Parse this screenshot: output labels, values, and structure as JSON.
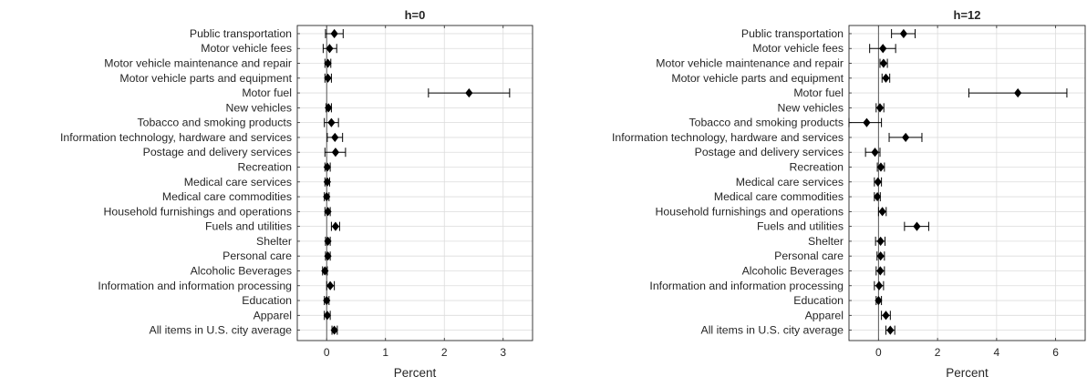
{
  "chart_data": [
    {
      "type": "scatter",
      "title": "h=0",
      "xlabel": "Percent",
      "ylabel": "",
      "xlim": [
        -0.5,
        3.5
      ],
      "xticks": [
        0,
        1,
        2,
        3
      ],
      "grid": true,
      "categories": [
        "Public transportation",
        "Motor vehicle fees",
        "Motor vehicle maintenance and repair",
        "Motor vehicle parts and equipment",
        "Motor fuel",
        "New vehicles",
        "Tobacco and smoking products",
        "Information technology, hardware and services",
        "Postage and delivery services",
        "Recreation",
        "Medical care services",
        "Medical care commodities",
        "Household furnishings and operations",
        "Fuels and utilities",
        "Shelter",
        "Personal care",
        "Alcoholic Beverages",
        "Information and information processing",
        "Education",
        "Apparel",
        "All items in U.S. city average"
      ],
      "points": [
        {
          "value": 0.13,
          "low": -0.02,
          "high": 0.28
        },
        {
          "value": 0.05,
          "low": -0.06,
          "high": 0.17
        },
        {
          "value": 0.02,
          "low": -0.03,
          "high": 0.07
        },
        {
          "value": 0.02,
          "low": -0.03,
          "high": 0.08
        },
        {
          "value": 2.42,
          "low": 1.73,
          "high": 3.11
        },
        {
          "value": 0.03,
          "low": -0.01,
          "high": 0.08
        },
        {
          "value": 0.08,
          "low": -0.04,
          "high": 0.2
        },
        {
          "value": 0.14,
          "low": 0.01,
          "high": 0.27
        },
        {
          "value": 0.15,
          "low": -0.03,
          "high": 0.32
        },
        {
          "value": 0.01,
          "low": -0.03,
          "high": 0.06
        },
        {
          "value": 0.01,
          "low": -0.03,
          "high": 0.05
        },
        {
          "value": 0.0,
          "low": -0.04,
          "high": 0.04
        },
        {
          "value": 0.02,
          "low": -0.03,
          "high": 0.06
        },
        {
          "value": 0.15,
          "low": 0.08,
          "high": 0.22
        },
        {
          "value": 0.02,
          "low": -0.02,
          "high": 0.06
        },
        {
          "value": 0.02,
          "low": -0.02,
          "high": 0.06
        },
        {
          "value": -0.03,
          "low": -0.07,
          "high": 0.01
        },
        {
          "value": 0.06,
          "low": 0.0,
          "high": 0.13
        },
        {
          "value": 0.0,
          "low": -0.04,
          "high": 0.04
        },
        {
          "value": 0.01,
          "low": -0.04,
          "high": 0.06
        },
        {
          "value": 0.13,
          "low": 0.09,
          "high": 0.18
        }
      ]
    },
    {
      "type": "scatter",
      "title": "h=12",
      "xlabel": "Percent",
      "ylabel": "",
      "xlim": [
        -1,
        7
      ],
      "xticks": [
        0,
        2,
        4,
        6
      ],
      "grid": true,
      "categories": [
        "Public transportation",
        "Motor vehicle fees",
        "Motor vehicle maintenance and repair",
        "Motor vehicle parts and equipment",
        "Motor fuel",
        "New vehicles",
        "Tobacco and smoking products",
        "Information technology, hardware and services",
        "Postage and delivery services",
        "Recreation",
        "Medical care services",
        "Medical care commodities",
        "Household furnishings and operations",
        "Fuels and utilities",
        "Shelter",
        "Personal care",
        "Alcoholic Beverages",
        "Information and information processing",
        "Education",
        "Apparel",
        "All items in U.S. city average"
      ],
      "points": [
        {
          "value": 0.85,
          "low": 0.44,
          "high": 1.24
        },
        {
          "value": 0.15,
          "low": -0.3,
          "high": 0.58
        },
        {
          "value": 0.17,
          "low": 0.05,
          "high": 0.3
        },
        {
          "value": 0.25,
          "low": 0.12,
          "high": 0.38
        },
        {
          "value": 4.72,
          "low": 3.06,
          "high": 6.38
        },
        {
          "value": 0.05,
          "low": -0.08,
          "high": 0.18
        },
        {
          "value": -0.4,
          "low": -1.0,
          "high": 0.1
        },
        {
          "value": 0.92,
          "low": 0.36,
          "high": 1.47
        },
        {
          "value": -0.12,
          "low": -0.44,
          "high": 0.05
        },
        {
          "value": 0.08,
          "low": -0.04,
          "high": 0.2
        },
        {
          "value": -0.02,
          "low": -0.14,
          "high": 0.1
        },
        {
          "value": -0.04,
          "low": -0.14,
          "high": 0.06
        },
        {
          "value": 0.13,
          "low": 0.0,
          "high": 0.26
        },
        {
          "value": 1.3,
          "low": 0.88,
          "high": 1.7
        },
        {
          "value": 0.07,
          "low": -0.1,
          "high": 0.22
        },
        {
          "value": 0.07,
          "low": -0.05,
          "high": 0.2
        },
        {
          "value": 0.06,
          "low": -0.08,
          "high": 0.2
        },
        {
          "value": 0.02,
          "low": -0.14,
          "high": 0.17
        },
        {
          "value": 0.0,
          "low": -0.08,
          "high": 0.1
        },
        {
          "value": 0.25,
          "low": 0.1,
          "high": 0.4
        },
        {
          "value": 0.4,
          "low": 0.25,
          "high": 0.55
        }
      ]
    }
  ]
}
